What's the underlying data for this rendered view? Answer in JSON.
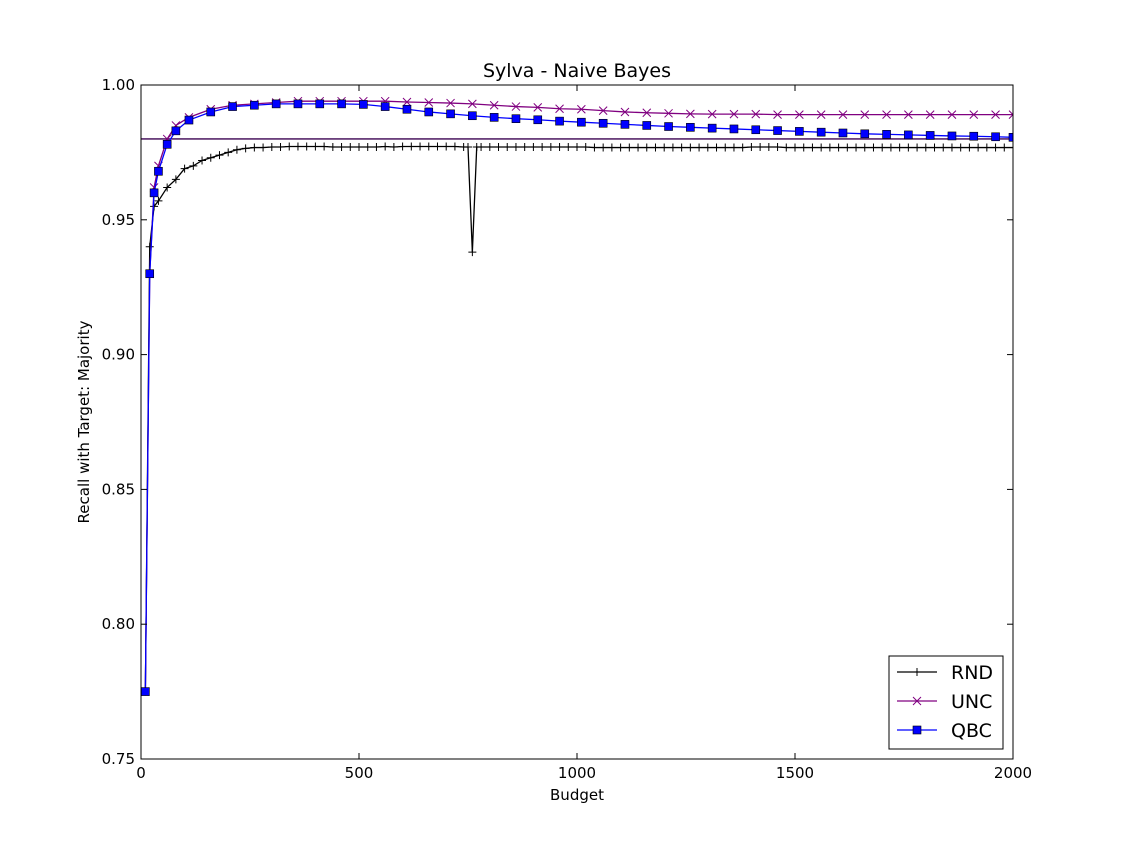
{
  "chart_data": {
    "type": "line",
    "title": "Sylva - Naive Bayes",
    "xlabel": "Budget",
    "ylabel": "Recall with Target: Majority",
    "xlim": [
      0,
      2000
    ],
    "ylim": [
      0.75,
      1.0
    ],
    "x_ticks": [
      0,
      500,
      1000,
      1500,
      2000
    ],
    "x_tick_labels": [
      "0",
      "500",
      "1000",
      "1500",
      "2000"
    ],
    "y_ticks": [
      0.75,
      0.8,
      0.85,
      0.9,
      0.95,
      1.0
    ],
    "y_tick_labels": [
      "0.75",
      "0.80",
      "0.85",
      "0.90",
      "0.95",
      "1.00"
    ],
    "grid": false,
    "legend_position": "lower-right",
    "reference_lines": [
      {
        "y": 0.98,
        "color": "#3a0050"
      }
    ],
    "series": [
      {
        "name": "RND",
        "color": "#000000",
        "marker": "plus",
        "points": [
          [
            10,
            0.775
          ],
          [
            20,
            0.94
          ],
          [
            30,
            0.955
          ],
          [
            40,
            0.957
          ],
          [
            60,
            0.962
          ],
          [
            80,
            0.965
          ],
          [
            100,
            0.969
          ],
          [
            120,
            0.97
          ],
          [
            140,
            0.972
          ],
          [
            160,
            0.973
          ],
          [
            180,
            0.974
          ],
          [
            200,
            0.975
          ],
          [
            220,
            0.976
          ],
          [
            240,
            0.9765
          ],
          [
            260,
            0.9768
          ],
          [
            280,
            0.9768
          ],
          [
            300,
            0.977
          ],
          [
            320,
            0.977
          ],
          [
            340,
            0.9772
          ],
          [
            360,
            0.9772
          ],
          [
            380,
            0.9772
          ],
          [
            400,
            0.9772
          ],
          [
            420,
            0.9772
          ],
          [
            440,
            0.977
          ],
          [
            460,
            0.977
          ],
          [
            480,
            0.977
          ],
          [
            500,
            0.977
          ],
          [
            520,
            0.977
          ],
          [
            540,
            0.977
          ],
          [
            560,
            0.9772
          ],
          [
            580,
            0.977
          ],
          [
            600,
            0.9772
          ],
          [
            620,
            0.9772
          ],
          [
            640,
            0.9772
          ],
          [
            660,
            0.9772
          ],
          [
            680,
            0.9772
          ],
          [
            700,
            0.9772
          ],
          [
            720,
            0.9772
          ],
          [
            740,
            0.977
          ],
          [
            750,
            0.977
          ],
          [
            760,
            0.938
          ],
          [
            770,
            0.977
          ],
          [
            780,
            0.977
          ],
          [
            800,
            0.977
          ],
          [
            820,
            0.977
          ],
          [
            840,
            0.977
          ],
          [
            860,
            0.977
          ],
          [
            880,
            0.977
          ],
          [
            900,
            0.977
          ],
          [
            920,
            0.977
          ],
          [
            940,
            0.977
          ],
          [
            960,
            0.977
          ],
          [
            980,
            0.977
          ],
          [
            1000,
            0.977
          ],
          [
            1020,
            0.977
          ],
          [
            1040,
            0.9768
          ],
          [
            1060,
            0.9768
          ],
          [
            1080,
            0.9768
          ],
          [
            1100,
            0.9768
          ],
          [
            1120,
            0.9768
          ],
          [
            1140,
            0.9768
          ],
          [
            1160,
            0.9768
          ],
          [
            1180,
            0.9768
          ],
          [
            1200,
            0.9768
          ],
          [
            1220,
            0.9768
          ],
          [
            1240,
            0.9768
          ],
          [
            1260,
            0.9768
          ],
          [
            1280,
            0.9768
          ],
          [
            1300,
            0.9768
          ],
          [
            1320,
            0.9768
          ],
          [
            1340,
            0.9768
          ],
          [
            1360,
            0.9768
          ],
          [
            1380,
            0.9768
          ],
          [
            1400,
            0.977
          ],
          [
            1420,
            0.977
          ],
          [
            1440,
            0.977
          ],
          [
            1460,
            0.977
          ],
          [
            1480,
            0.9768
          ],
          [
            1500,
            0.9768
          ],
          [
            1520,
            0.9768
          ],
          [
            1540,
            0.9768
          ],
          [
            1560,
            0.9768
          ],
          [
            1580,
            0.9768
          ],
          [
            1600,
            0.9768
          ],
          [
            1620,
            0.9768
          ],
          [
            1640,
            0.9768
          ],
          [
            1660,
            0.9768
          ],
          [
            1680,
            0.9768
          ],
          [
            1700,
            0.9768
          ],
          [
            1720,
            0.9768
          ],
          [
            1740,
            0.9768
          ],
          [
            1760,
            0.9768
          ],
          [
            1780,
            0.9768
          ],
          [
            1800,
            0.9768
          ],
          [
            1820,
            0.9768
          ],
          [
            1840,
            0.9768
          ],
          [
            1860,
            0.9768
          ],
          [
            1880,
            0.9768
          ],
          [
            1900,
            0.9768
          ],
          [
            1920,
            0.9768
          ],
          [
            1940,
            0.9768
          ],
          [
            1960,
            0.9768
          ],
          [
            1980,
            0.9768
          ],
          [
            2000,
            0.9768
          ]
        ]
      },
      {
        "name": "UNC",
        "color": "#800080",
        "marker": "x",
        "points": [
          [
            10,
            0.775
          ],
          [
            20,
            0.93
          ],
          [
            30,
            0.962
          ],
          [
            40,
            0.97
          ],
          [
            60,
            0.98
          ],
          [
            80,
            0.985
          ],
          [
            110,
            0.988
          ],
          [
            160,
            0.991
          ],
          [
            210,
            0.9925
          ],
          [
            260,
            0.993
          ],
          [
            310,
            0.9935
          ],
          [
            360,
            0.994
          ],
          [
            410,
            0.994
          ],
          [
            460,
            0.994
          ],
          [
            510,
            0.994
          ],
          [
            560,
            0.994
          ],
          [
            610,
            0.9937
          ],
          [
            660,
            0.9935
          ],
          [
            710,
            0.9933
          ],
          [
            760,
            0.993
          ],
          [
            810,
            0.9925
          ],
          [
            860,
            0.992
          ],
          [
            910,
            0.9917
          ],
          [
            960,
            0.9912
          ],
          [
            1010,
            0.991
          ],
          [
            1060,
            0.9905
          ],
          [
            1110,
            0.99
          ],
          [
            1160,
            0.9897
          ],
          [
            1210,
            0.9895
          ],
          [
            1260,
            0.9893
          ],
          [
            1310,
            0.9892
          ],
          [
            1360,
            0.9892
          ],
          [
            1410,
            0.9892
          ],
          [
            1460,
            0.989
          ],
          [
            1510,
            0.989
          ],
          [
            1560,
            0.989
          ],
          [
            1610,
            0.989
          ],
          [
            1660,
            0.989
          ],
          [
            1710,
            0.989
          ],
          [
            1760,
            0.989
          ],
          [
            1810,
            0.989
          ],
          [
            1860,
            0.989
          ],
          [
            1910,
            0.989
          ],
          [
            1960,
            0.989
          ],
          [
            2000,
            0.989
          ]
        ]
      },
      {
        "name": "QBC",
        "color": "#0000ff",
        "marker": "square",
        "points": [
          [
            10,
            0.775
          ],
          [
            20,
            0.93
          ],
          [
            30,
            0.96
          ],
          [
            40,
            0.968
          ],
          [
            60,
            0.978
          ],
          [
            80,
            0.983
          ],
          [
            110,
            0.987
          ],
          [
            160,
            0.99
          ],
          [
            210,
            0.992
          ],
          [
            260,
            0.9925
          ],
          [
            310,
            0.993
          ],
          [
            360,
            0.993
          ],
          [
            410,
            0.993
          ],
          [
            460,
            0.993
          ],
          [
            510,
            0.9928
          ],
          [
            560,
            0.992
          ],
          [
            610,
            0.991
          ],
          [
            660,
            0.99
          ],
          [
            710,
            0.9893
          ],
          [
            760,
            0.9886
          ],
          [
            810,
            0.988
          ],
          [
            860,
            0.9875
          ],
          [
            910,
            0.9871
          ],
          [
            960,
            0.9866
          ],
          [
            1010,
            0.9862
          ],
          [
            1060,
            0.9858
          ],
          [
            1110,
            0.9854
          ],
          [
            1160,
            0.985
          ],
          [
            1210,
            0.9846
          ],
          [
            1260,
            0.9843
          ],
          [
            1310,
            0.984
          ],
          [
            1360,
            0.9837
          ],
          [
            1410,
            0.9834
          ],
          [
            1460,
            0.9831
          ],
          [
            1510,
            0.9828
          ],
          [
            1560,
            0.9825
          ],
          [
            1610,
            0.9822
          ],
          [
            1660,
            0.9819
          ],
          [
            1710,
            0.9817
          ],
          [
            1760,
            0.9815
          ],
          [
            1810,
            0.9813
          ],
          [
            1860,
            0.9811
          ],
          [
            1910,
            0.981
          ],
          [
            1960,
            0.9808
          ],
          [
            2000,
            0.9806
          ]
        ]
      }
    ]
  }
}
